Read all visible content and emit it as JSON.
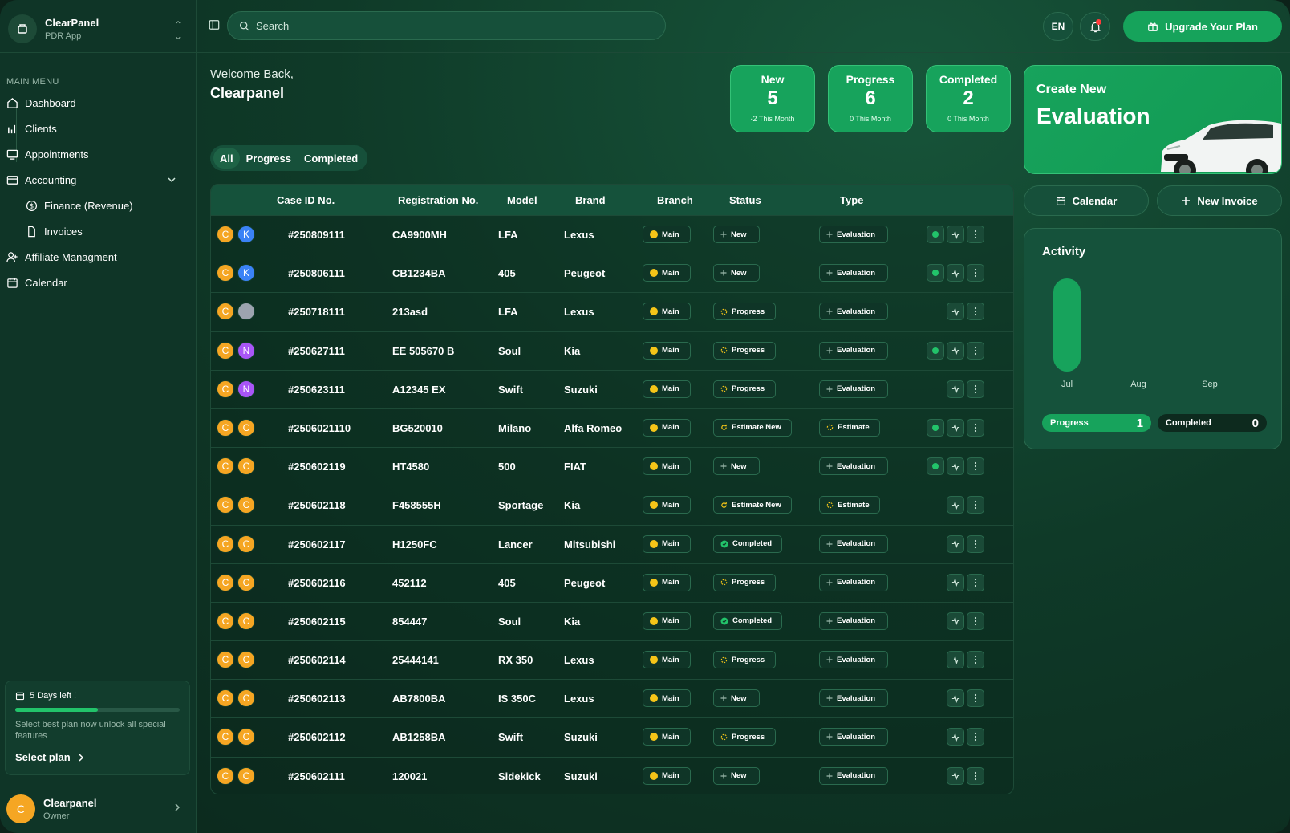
{
  "sidebar": {
    "brand_name": "ClearPanel",
    "brand_sub": "PDR App",
    "menu_heading": "MAIN MENU",
    "items": [
      {
        "label": "Dashboard"
      },
      {
        "label": "Clients"
      },
      {
        "label": "Appointments"
      },
      {
        "label": "Accounting"
      },
      {
        "label": "Finance (Revenue)"
      },
      {
        "label": "Invoices"
      },
      {
        "label": "Affiliate Managment"
      },
      {
        "label": "Calendar"
      }
    ],
    "trial": {
      "days_left": "5 Days left !",
      "progress": 0.5,
      "desc": "Select best plan now unlock all special features",
      "cta": "Select plan"
    },
    "user": {
      "initial": "C",
      "name": "Clearpanel",
      "role": "Owner"
    }
  },
  "topbar": {
    "search_placeholder": "Search",
    "lang": "EN",
    "upgrade": "Upgrade Your Plan"
  },
  "welcome": {
    "line1": "Welcome Back,",
    "name": "Clearpanel"
  },
  "stats": [
    {
      "label": "New",
      "value": "5",
      "sub": "-2 This Month"
    },
    {
      "label": "Progress",
      "value": "6",
      "sub": "0 This Month"
    },
    {
      "label": "Completed",
      "value": "2",
      "sub": "0 This Month"
    }
  ],
  "evaluation": {
    "title": "Create New",
    "big": "Evaluation"
  },
  "actions": {
    "calendar": "Calendar",
    "new_invoice": "New Invoice"
  },
  "activity": {
    "title": "Activity",
    "months": [
      "Jul",
      "Aug",
      "Sep"
    ],
    "progress_label": "Progress",
    "progress_value": "1",
    "completed_label": "Completed",
    "completed_value": "0"
  },
  "tabs": [
    "All",
    "Progress",
    "Completed"
  ],
  "table": {
    "headers": [
      "Case ID No.",
      "Registration No.",
      "Model",
      "Brand",
      "Branch",
      "Status",
      "Type"
    ],
    "rows": [
      {
        "a1": "C",
        "a2": "K",
        "c2": "#3b82f6",
        "id": "#250809111",
        "reg": "CA9900MH",
        "model": "LFA",
        "brand": "Lexus",
        "branch": "Main",
        "status": "New",
        "type": "Evaluation",
        "live": true
      },
      {
        "a1": "C",
        "a2": "K",
        "c2": "#3b82f6",
        "id": "#250806111",
        "reg": "CB1234BA",
        "model": "405",
        "brand": "Peugeot",
        "branch": "Main",
        "status": "New",
        "type": "Evaluation",
        "live": true
      },
      {
        "a1": "C",
        "a2": "",
        "c2": "#9ca3af",
        "id": "#250718111",
        "reg": "213asd",
        "model": "LFA",
        "brand": "Lexus",
        "branch": "Main",
        "status": "Progress",
        "type": "Evaluation",
        "live": false
      },
      {
        "a1": "C",
        "a2": "N",
        "c2": "#a855f7",
        "id": "#250627111",
        "reg": "EE 505670 B",
        "model": "Soul",
        "brand": "Kia",
        "branch": "Main",
        "status": "Progress",
        "type": "Evaluation",
        "live": true
      },
      {
        "a1": "C",
        "a2": "N",
        "c2": "#a855f7",
        "id": "#250623111",
        "reg": "A12345 EX",
        "model": "Swift",
        "brand": "Suzuki",
        "branch": "Main",
        "status": "Progress",
        "type": "Evaluation",
        "live": false
      },
      {
        "a1": "C",
        "a2": "C",
        "c2": "#f5a623",
        "id": "#2506021110",
        "reg": "BG520010",
        "model": "Milano",
        "brand": "Alfa Romeo",
        "branch": "Main",
        "status": "Estimate New",
        "type": "Estimate",
        "live": true
      },
      {
        "a1": "C",
        "a2": "C",
        "c2": "#f5a623",
        "id": "#250602119",
        "reg": "HT4580",
        "model": "500",
        "brand": "FIAT",
        "branch": "Main",
        "status": "New",
        "type": "Evaluation",
        "live": true
      },
      {
        "a1": "C",
        "a2": "C",
        "c2": "#f5a623",
        "id": "#250602118",
        "reg": "F458555H",
        "model": "Sportage",
        "brand": "Kia",
        "branch": "Main",
        "status": "Estimate New",
        "type": "Estimate",
        "live": false
      },
      {
        "a1": "C",
        "a2": "C",
        "c2": "#f5a623",
        "id": "#250602117",
        "reg": "H1250FC",
        "model": "Lancer",
        "brand": "Mitsubishi",
        "branch": "Main",
        "status": "Completed",
        "type": "Evaluation",
        "live": false
      },
      {
        "a1": "C",
        "a2": "C",
        "c2": "#f5a623",
        "id": "#250602116",
        "reg": "452112",
        "model": "405",
        "brand": "Peugeot",
        "branch": "Main",
        "status": "Progress",
        "type": "Evaluation",
        "live": false
      },
      {
        "a1": "C",
        "a2": "C",
        "c2": "#f5a623",
        "id": "#250602115",
        "reg": "854447",
        "model": "Soul",
        "brand": "Kia",
        "branch": "Main",
        "status": "Completed",
        "type": "Evaluation",
        "live": false
      },
      {
        "a1": "C",
        "a2": "C",
        "c2": "#f5a623",
        "id": "#250602114",
        "reg": "25444141",
        "model": "RX 350",
        "brand": "Lexus",
        "branch": "Main",
        "status": "Progress",
        "type": "Evaluation",
        "live": false
      },
      {
        "a1": "C",
        "a2": "C",
        "c2": "#f5a623",
        "id": "#250602113",
        "reg": "AB7800BA",
        "model": "IS 350C",
        "brand": "Lexus",
        "branch": "Main",
        "status": "New",
        "type": "Evaluation",
        "live": false
      },
      {
        "a1": "C",
        "a2": "C",
        "c2": "#f5a623",
        "id": "#250602112",
        "reg": "AB1258BA",
        "model": "Swift",
        "brand": "Suzuki",
        "branch": "Main",
        "status": "Progress",
        "type": "Evaluation",
        "live": false
      },
      {
        "a1": "C",
        "a2": "C",
        "c2": "#f5a623",
        "id": "#250602111",
        "reg": "120021",
        "model": "Sidekick",
        "brand": "Suzuki",
        "branch": "Main",
        "status": "New",
        "type": "Evaluation",
        "live": false
      }
    ]
  },
  "colors": {
    "accent": "#17a35c",
    "avatar_primary": "#f5a623",
    "branch_dot": "#f5c518",
    "live_dot": "#22c36a"
  }
}
